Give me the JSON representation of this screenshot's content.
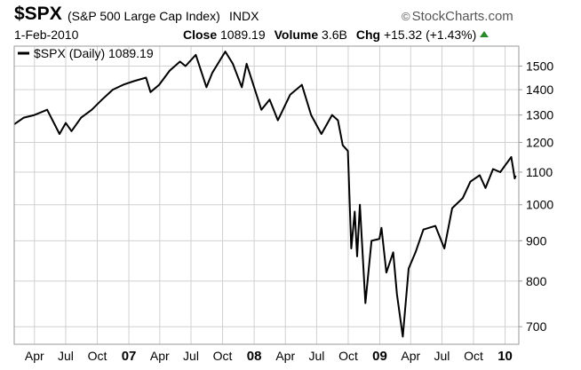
{
  "header": {
    "symbol": "$SPX",
    "description": "(S&P 500 Large Cap Index)",
    "exchange": "INDX",
    "brand": "StockCharts.com",
    "date": "1-Feb-2010",
    "close_label": "Close",
    "close_value": "1089.19",
    "volume_label": "Volume",
    "volume_value": "3.6B",
    "chg_label": "Chg",
    "chg_value": "+15.32 (+1.43%)",
    "chg_color": "#2a8a2a"
  },
  "chart_data": {
    "type": "line",
    "scale": "log",
    "ylim": [
      665,
      1590
    ],
    "yticks": [
      700,
      800,
      900,
      1000,
      1100,
      1200,
      1300,
      1400,
      1500
    ],
    "grid": true,
    "legend": {
      "label": "$SPX (Daily) 1089.19",
      "placement": "top-left"
    },
    "xlim": [
      "2006-02-01",
      "2010-02-10"
    ],
    "xticks": [
      {
        "date": "2006-04-01",
        "label": "Apr"
      },
      {
        "date": "2006-07-01",
        "label": "Jul"
      },
      {
        "date": "2006-10-01",
        "label": "Oct"
      },
      {
        "date": "2007-01-01",
        "label": "07",
        "year": true
      },
      {
        "date": "2007-04-01",
        "label": "Apr"
      },
      {
        "date": "2007-07-01",
        "label": "Jul"
      },
      {
        "date": "2007-10-01",
        "label": "Oct"
      },
      {
        "date": "2008-01-01",
        "label": "08",
        "year": true
      },
      {
        "date": "2008-04-01",
        "label": "Apr"
      },
      {
        "date": "2008-07-01",
        "label": "Jul"
      },
      {
        "date": "2008-10-01",
        "label": "Oct"
      },
      {
        "date": "2009-01-01",
        "label": "09",
        "year": true
      },
      {
        "date": "2009-04-01",
        "label": "Apr"
      },
      {
        "date": "2009-07-01",
        "label": "Jul"
      },
      {
        "date": "2009-10-01",
        "label": "Oct"
      },
      {
        "date": "2010-01-01",
        "label": "10",
        "year": true
      }
    ],
    "series": [
      {
        "name": "$SPX (Daily)",
        "color": "#000000",
        "x": [
          "2006-02-01",
          "2006-03-01",
          "2006-04-01",
          "2006-05-08",
          "2006-06-13",
          "2006-07-01",
          "2006-07-18",
          "2006-08-15",
          "2006-09-15",
          "2006-10-15",
          "2006-11-15",
          "2006-12-15",
          "2007-01-15",
          "2007-02-20",
          "2007-03-05",
          "2007-03-30",
          "2007-04-30",
          "2007-05-30",
          "2007-06-15",
          "2007-07-15",
          "2007-08-15",
          "2007-09-01",
          "2007-10-09",
          "2007-10-31",
          "2007-11-26",
          "2007-12-10",
          "2008-01-22",
          "2008-02-15",
          "2008-03-10",
          "2008-04-15",
          "2008-05-19",
          "2008-06-15",
          "2008-07-15",
          "2008-08-15",
          "2008-09-01",
          "2008-09-15",
          "2008-09-30",
          "2008-10-10",
          "2008-10-20",
          "2008-10-27",
          "2008-11-04",
          "2008-11-20",
          "2008-12-08",
          "2008-12-31",
          "2009-01-06",
          "2009-01-20",
          "2009-02-09",
          "2009-02-20",
          "2009-03-09",
          "2009-03-26",
          "2009-04-15",
          "2009-05-08",
          "2009-06-12",
          "2009-07-08",
          "2009-07-31",
          "2009-08-31",
          "2009-09-22",
          "2009-10-19",
          "2009-11-05",
          "2009-11-27",
          "2009-12-18",
          "2010-01-19",
          "2010-01-29",
          "2010-02-01"
        ],
        "y": [
          1265,
          1290,
          1300,
          1320,
          1230,
          1270,
          1240,
          1290,
          1320,
          1360,
          1400,
          1420,
          1435,
          1450,
          1390,
          1420,
          1480,
          1520,
          1500,
          1550,
          1410,
          1470,
          1565,
          1510,
          1410,
          1510,
          1320,
          1360,
          1280,
          1380,
          1420,
          1300,
          1230,
          1300,
          1280,
          1190,
          1170,
          880,
          980,
          860,
          1000,
          750,
          900,
          905,
          935,
          820,
          870,
          770,
          680,
          830,
          870,
          930,
          940,
          880,
          990,
          1020,
          1070,
          1090,
          1050,
          1110,
          1100,
          1150,
          1080,
          1089
        ]
      }
    ]
  }
}
